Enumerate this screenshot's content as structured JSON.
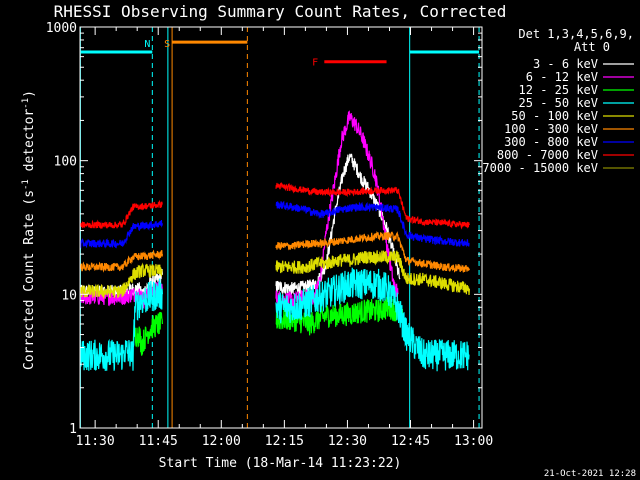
{
  "chart_data": {
    "type": "line",
    "title": "RHESSI Observing Summary Count Rates, Corrected",
    "xlabel": "Start Time (18-Mar-14 11:23:22)",
    "ylabel_main": "Corrected Count Rate (s",
    "ylabel_sup1": "-1",
    "ylabel_mid": " detector",
    "ylabel_sup2": "-1",
    "ylabel_end": ")",
    "x_unit": "minutes since 00:00 UT",
    "xlim": [
      686.4,
      782.0
    ],
    "ylim": [
      1,
      1000
    ],
    "yscale": "log",
    "x_ticks": [
      {
        "value": 690,
        "label": "11:30"
      },
      {
        "value": 705,
        "label": "11:45"
      },
      {
        "value": 720,
        "label": "12:00"
      },
      {
        "value": 735,
        "label": "12:15"
      },
      {
        "value": 750,
        "label": "12:30"
      },
      {
        "value": 765,
        "label": "12:45"
      },
      {
        "value": 780,
        "label": "13:00"
      }
    ],
    "y_ticks": [
      {
        "value": 1,
        "label": "1"
      },
      {
        "value": 10,
        "label": "10"
      },
      {
        "value": 100,
        "label": "100"
      },
      {
        "value": 1000,
        "label": "1000"
      }
    ],
    "legend_header": [
      "Det 1,3,4,5,6,9,",
      "Att 0"
    ],
    "legend_position": "right",
    "series": [
      {
        "name": "3 - 6 keV",
        "color": "#ffffff",
        "noise": 0.05,
        "segments": [
          [
            [
              686.5,
              10.5
            ],
            [
              696.5,
              10.5
            ],
            [
              699,
              11
            ],
            [
              700.5,
              11
            ],
            [
              701,
              10
            ],
            [
              703,
              12
            ],
            [
              705,
              13
            ],
            [
              706,
              14
            ]
          ],
          [
            [
              733,
              11.5
            ],
            [
              737,
              11
            ],
            [
              741,
              11.5
            ],
            [
              743,
              12.5
            ],
            [
              745,
              17
            ],
            [
              747,
              40
            ],
            [
              749,
              80
            ],
            [
              750.5,
              108
            ],
            [
              752,
              90
            ],
            [
              753.5,
              72
            ],
            [
              755,
              62
            ],
            [
              756.5,
              50
            ],
            [
              758,
              40
            ],
            [
              759.5,
              30
            ],
            [
              761,
              20
            ],
            [
              762.5,
              13
            ]
          ]
        ]
      },
      {
        "name": "6 - 12 keV",
        "color": "#ff00ff",
        "noise": 0.06,
        "segments": [
          [
            [
              686.5,
              9.5
            ],
            [
              696.5,
              9.5
            ],
            [
              699,
              10
            ],
            [
              701,
              10
            ],
            [
              701.5,
              9
            ],
            [
              703,
              10.5
            ],
            [
              705,
              11
            ],
            [
              706,
              11
            ]
          ],
          [
            [
              733,
              9.5
            ],
            [
              737,
              9
            ],
            [
              740,
              9.5
            ],
            [
              742,
              9.5
            ],
            [
              743.5,
              13
            ],
            [
              745,
              30
            ],
            [
              747,
              70
            ],
            [
              748.5,
              140
            ],
            [
              750.5,
              212
            ],
            [
              752,
              185
            ],
            [
              753.5,
              150
            ],
            [
              755,
              110
            ],
            [
              756.5,
              80
            ],
            [
              758,
              45
            ],
            [
              759.5,
              22
            ],
            [
              761,
              12
            ],
            [
              762,
              10
            ]
          ]
        ]
      },
      {
        "name": "12 - 25 keV",
        "color": "#00ff00",
        "noise": 0.09,
        "segments": [
          [
            [
              699,
              5
            ],
            [
              700.5,
              5
            ],
            [
              701,
              4.2
            ],
            [
              703,
              5.5
            ],
            [
              705,
              6
            ],
            [
              706,
              6
            ]
          ],
          [
            [
              733,
              6.5
            ],
            [
              737,
              6.5
            ],
            [
              741,
              6
            ],
            [
              743,
              6.5
            ],
            [
              745,
              7
            ],
            [
              748,
              7
            ],
            [
              751,
              7.2
            ],
            [
              754,
              7.5
            ],
            [
              757,
              7.5
            ],
            [
              760,
              8
            ],
            [
              762,
              7.5
            ],
            [
              763,
              6.5
            ],
            [
              764,
              5.5
            ]
          ]
        ]
      },
      {
        "name": "25 - 50 keV",
        "color": "#00ffff",
        "noise": 0.12,
        "segments": [
          [
            [
              686.5,
              3.5
            ],
            [
              696.5,
              3.5
            ],
            [
              697,
              3.8
            ],
            [
              699,
              3.5
            ],
            [
              699.5,
              8
            ],
            [
              701,
              9
            ],
            [
              703,
              9.5
            ],
            [
              705,
              10
            ],
            [
              706,
              10
            ]
          ],
          [
            [
              733,
              8
            ],
            [
              737,
              8
            ],
            [
              740,
              8.5
            ],
            [
              742,
              9
            ],
            [
              743,
              9.5
            ],
            [
              745,
              10
            ],
            [
              748,
              11
            ],
            [
              751,
              12
            ],
            [
              754,
              12
            ],
            [
              757,
              12
            ],
            [
              759.5,
              11
            ],
            [
              761,
              9
            ],
            [
              762,
              8
            ],
            [
              764,
              5
            ],
            [
              768,
              3.5
            ],
            [
              773,
              3.5
            ],
            [
              779,
              3.5
            ]
          ]
        ]
      },
      {
        "name": "50 - 100 keV",
        "color": "#dddd00",
        "noise": 0.05,
        "segments": [
          [
            [
              686.5,
              10.5
            ],
            [
              696.5,
              10.5
            ],
            [
              699,
              14
            ],
            [
              701,
              15
            ],
            [
              703,
              15
            ],
            [
              705,
              15
            ],
            [
              706,
              15
            ]
          ],
          [
            [
              733,
              16
            ],
            [
              737,
              16
            ],
            [
              740,
              16
            ],
            [
              743,
              17
            ],
            [
              745,
              17
            ],
            [
              748,
              18
            ],
            [
              751,
              18
            ],
            [
              754,
              19
            ],
            [
              757,
              19
            ],
            [
              760,
              19
            ],
            [
              762,
              19
            ],
            [
              764,
              13
            ],
            [
              768,
              13
            ],
            [
              773,
              12
            ],
            [
              779,
              11
            ]
          ]
        ]
      },
      {
        "name": "100 - 300 keV",
        "color": "#ff8800",
        "noise": 0.03,
        "segments": [
          [
            [
              686.5,
              16
            ],
            [
              696.5,
              16
            ],
            [
              699,
              19
            ],
            [
              703,
              19.5
            ],
            [
              706,
              20
            ]
          ],
          [
            [
              733,
              23
            ],
            [
              737,
              23
            ],
            [
              741,
              24
            ],
            [
              744,
              24
            ],
            [
              748,
              25
            ],
            [
              752,
              26
            ],
            [
              756,
              27
            ],
            [
              760,
              27.5
            ],
            [
              762,
              27
            ],
            [
              764,
              18
            ],
            [
              768,
              17
            ],
            [
              773,
              16
            ],
            [
              779,
              15.5
            ]
          ]
        ]
      },
      {
        "name": "300 - 800 keV",
        "color": "#0000ff",
        "noise": 0.03,
        "segments": [
          [
            [
              686.5,
              24
            ],
            [
              696.5,
              24
            ],
            [
              699,
              32
            ],
            [
              703,
              33
            ],
            [
              706,
              34
            ]
          ],
          [
            [
              733,
              47
            ],
            [
              737,
              45
            ],
            [
              740,
              43
            ],
            [
              743,
              40
            ],
            [
              745,
              40
            ],
            [
              748,
              43
            ],
            [
              752,
              45
            ],
            [
              756,
              45
            ],
            [
              760,
              44
            ],
            [
              762,
              43
            ],
            [
              764,
              28
            ],
            [
              768,
              26
            ],
            [
              773,
              25
            ],
            [
              779,
              24
            ]
          ]
        ]
      },
      {
        "name": "800 - 7000 keV",
        "color": "#ff0000",
        "noise": 0.025,
        "segments": [
          [
            [
              686.5,
              33
            ],
            [
              696.5,
              33
            ],
            [
              699,
              45
            ],
            [
              703,
              46
            ],
            [
              706,
              47
            ]
          ],
          [
            [
              733,
              65
            ],
            [
              737,
              62
            ],
            [
              740,
              60
            ],
            [
              743,
              58
            ],
            [
              746,
              58
            ],
            [
              750,
              58
            ],
            [
              754,
              59
            ],
            [
              758,
              60
            ],
            [
              762,
              60
            ],
            [
              764,
              37
            ],
            [
              768,
              35
            ],
            [
              773,
              34
            ],
            [
              779,
              33
            ]
          ]
        ]
      },
      {
        "name": "7000 - 15000 keV",
        "color": "#888800",
        "noise": 0,
        "segments": []
      }
    ],
    "vlines": [
      {
        "x": 686.5,
        "color": "#00ffff",
        "style": "solid"
      },
      {
        "x": 703.6,
        "color": "#00ffff",
        "style": "dashed"
      },
      {
        "x": 707.3,
        "color": "#00ffff",
        "style": "solid"
      },
      {
        "x": 708.3,
        "color": "#ff8800",
        "style": "solid"
      },
      {
        "x": 726.2,
        "color": "#ff8800",
        "style": "dashed"
      },
      {
        "x": 764.8,
        "color": "#00ffff",
        "style": "solid"
      },
      {
        "x": 781.3,
        "color": "#00ffff",
        "style": "dashed"
      }
    ],
    "annotations": [
      {
        "label": "N",
        "x": 703.6,
        "color": "#00ffff"
      },
      {
        "label": "S",
        "x": 708.3,
        "color": "#ff8800"
      },
      {
        "label": "F",
        "x": 743.5,
        "color": "#ff0000"
      }
    ],
    "bars": [
      {
        "x0": 686.6,
        "x1": 703.6,
        "y": 650,
        "color": "#00ffff"
      },
      {
        "x0": 764.8,
        "x1": 781.3,
        "y": 650,
        "color": "#00ffff"
      },
      {
        "x0": 708.4,
        "x1": 726.2,
        "y": 770,
        "color": "#ff8800"
      },
      {
        "x0": 744.5,
        "x1": 759.3,
        "y": 550,
        "color": "#ff0000"
      }
    ],
    "grid": false
  },
  "footer_date": "21-Oct-2021 12:28"
}
